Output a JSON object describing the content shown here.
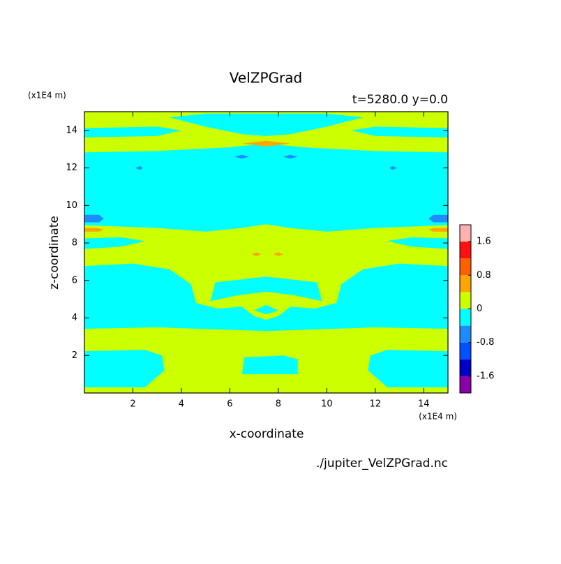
{
  "chart_data": {
    "type": "contour",
    "title": "VelZPGrad",
    "subtitle": "t=5280.0 y=0.0",
    "x_label": "x-coordinate",
    "y_label": "z-coordinate",
    "x_unit": "(x1E4 m)",
    "y_unit": "(x1E4 m)",
    "footnote": "./jupiter_VelZPGrad.nc",
    "xlim": [
      0,
      15
    ],
    "ylim": [
      0,
      15
    ],
    "xticks": [
      2,
      4,
      6,
      8,
      10,
      12,
      14
    ],
    "yticks": [
      2,
      4,
      6,
      8,
      10,
      12,
      14
    ],
    "colorbar": {
      "levels": [
        -2.0,
        -1.6,
        -1.2,
        -0.8,
        -0.4,
        0,
        0.4,
        0.8,
        1.2,
        1.6,
        2.0
      ],
      "colors": [
        "#8a00a8",
        "#0000c8",
        "#0050ff",
        "#1e8cff",
        "#00ffff",
        "#ccff00",
        "#ffa500",
        "#ff6000",
        "#ff1010",
        "#ffb0b0"
      ],
      "ticks": [
        1.6,
        0.8,
        0,
        -0.8,
        -1.6
      ]
    }
  }
}
